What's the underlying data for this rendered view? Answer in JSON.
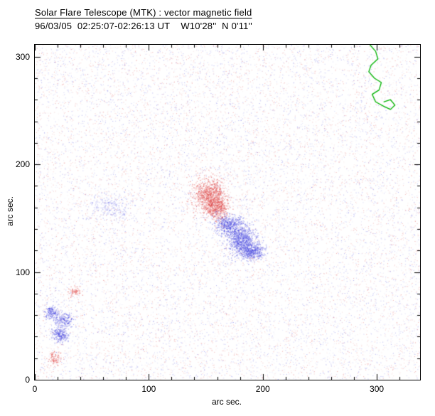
{
  "header": {
    "title": "Solar Flare Telescope (MTK) : vector magnetic field",
    "subtitle": "96/03/05  02:25:07-02:26:13 UT    W10'28''  N 0'11''"
  },
  "chart_data": {
    "type": "scatter",
    "title": "Solar Flare Telescope (MTK) : vector magnetic field",
    "subtitle": "96/03/05  02:25:07-02:26:13 UT    W10'28''  N 0'11''",
    "xlabel": "arc sec.",
    "ylabel": "arc sec.",
    "xlim": [
      0,
      338
    ],
    "ylim": [
      0,
      311
    ],
    "xticks": [
      0,
      100,
      200,
      300
    ],
    "yticks": [
      0,
      100,
      200,
      300
    ],
    "minor_tick_interval": 20,
    "grid": false,
    "legend": false,
    "colors": {
      "positive_polarity": "#e04848",
      "negative_polarity": "#4848e0",
      "limb_contour": "#00b400",
      "axis": "#000000",
      "background": "#ffffff"
    },
    "noise_field": {
      "description": "uniform speckle of mixed positive (red) and negative (blue) polarity pixels over whole field",
      "points": 16000,
      "seed": 960305,
      "alpha_range": [
        0.08,
        0.45
      ]
    },
    "clusters": [
      {
        "label": "main positive spot core",
        "polarity": "positive",
        "cx": 153,
        "cy": 172,
        "sx": 7,
        "sy": 8,
        "n": 900
      },
      {
        "label": "main positive spot tail",
        "polarity": "positive",
        "cx": 160,
        "cy": 159,
        "sx": 5,
        "sy": 6,
        "n": 420
      },
      {
        "label": "main negative spot upper",
        "polarity": "negative",
        "cx": 170,
        "cy": 144,
        "sx": 6,
        "sy": 5,
        "n": 480
      },
      {
        "label": "main negative spot core",
        "polarity": "negative",
        "cx": 181,
        "cy": 130,
        "sx": 6,
        "sy": 7,
        "n": 780
      },
      {
        "label": "main negative spot lower",
        "polarity": "negative",
        "cx": 190,
        "cy": 119,
        "sx": 5,
        "sy": 4,
        "n": 420
      },
      {
        "label": "faint negative patch",
        "polarity": "negative",
        "cx": 67,
        "cy": 161,
        "sx": 8,
        "sy": 6,
        "n": 230,
        "alpha": 0.3
      },
      {
        "label": "small negative spot a",
        "polarity": "negative",
        "cx": 14,
        "cy": 63,
        "sx": 3,
        "sy": 3,
        "n": 160
      },
      {
        "label": "small negative spot b",
        "polarity": "negative",
        "cx": 25,
        "cy": 56,
        "sx": 4,
        "sy": 3.5,
        "n": 210
      },
      {
        "label": "small negative spot c",
        "polarity": "negative",
        "cx": 22,
        "cy": 42,
        "sx": 4,
        "sy": 3.5,
        "n": 230
      },
      {
        "label": "small positive spot a",
        "polarity": "positive",
        "cx": 35,
        "cy": 82,
        "sx": 2.5,
        "sy": 2.5,
        "n": 70
      },
      {
        "label": "small positive spot b",
        "polarity": "positive",
        "cx": 17,
        "cy": 20,
        "sx": 3,
        "sy": 3,
        "n": 90
      }
    ],
    "contour_line": {
      "label": "limb contour (green), upper-right corner",
      "color": "#00b400",
      "points": [
        [
          294,
          311
        ],
        [
          299,
          305
        ],
        [
          301,
          298
        ],
        [
          295,
          292
        ],
        [
          293,
          286
        ],
        [
          298,
          280
        ],
        [
          304,
          276
        ],
        [
          302,
          269
        ],
        [
          296,
          265
        ],
        [
          299,
          258
        ],
        [
          306,
          254
        ],
        [
          312,
          251
        ],
        [
          316,
          255
        ],
        [
          312,
          260
        ],
        [
          306,
          258
        ]
      ]
    }
  }
}
